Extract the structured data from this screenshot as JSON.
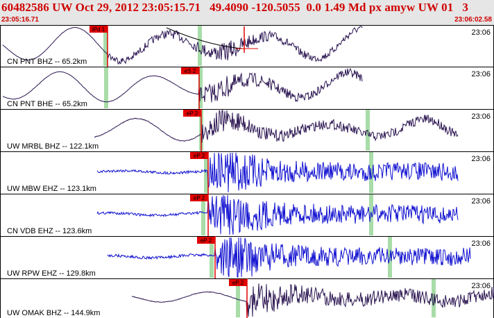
{
  "header": {
    "title": "60482586 UW Oct 29, 2012 23:05:15.71   49.4090 -120.5055  0.0 1.49 Md px amyw UW 01   3",
    "time_start": "23:05:16.71",
    "time_end": "23:06:02.58"
  },
  "colors": {
    "header_bg": "#e6e6e6",
    "header_text": "#d00000",
    "trace_dark": "#2a1450",
    "trace_blue": "#1010d0",
    "pick": "#e00000",
    "window_marker": "#a8dca8"
  },
  "channels": [
    {
      "label": "CN PNT BHZ -- 65.2km",
      "time_label": "23:06",
      "pick_label": "iPd 1",
      "color": "dark"
    },
    {
      "label": "CN PNT BHE -- 65.2km",
      "time_label": "23:06",
      "pick_label": "eS 2",
      "color": "dark"
    },
    {
      "label": "UW MRBL BHZ -- 122.1km",
      "time_label": "23:06",
      "pick_label": "eP 2",
      "color": "dark"
    },
    {
      "label": "UW MBW EHZ -- 123.1km",
      "time_label": "23:06",
      "pick_label": "eP 2",
      "color": "blue"
    },
    {
      "label": "CN VDB EHZ -- 123.6km",
      "time_label": "23:06",
      "pick_label": "eP 2",
      "color": "blue"
    },
    {
      "label": "UW RPW EHZ -- 129.8km",
      "time_label": "23:06",
      "pick_label": "eP 2",
      "color": "blue"
    },
    {
      "label": "UW OMAK BHZ -- 144.9km",
      "time_label": "23:06",
      "pick_label": "eP 2",
      "color": "dark"
    }
  ]
}
